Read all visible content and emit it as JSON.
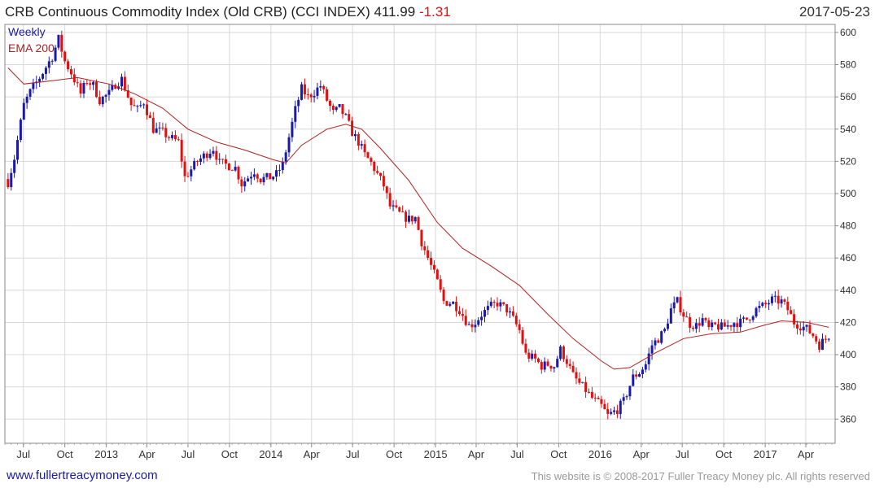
{
  "header": {
    "title": "CRB Continuous Commodity Index (Old CRB) (CCI INDEX) 411.99",
    "change": "-1.31",
    "date": "2017-05-23"
  },
  "legend": {
    "weekly": "Weekly",
    "ema": "EMA 200"
  },
  "footer": {
    "site": "www.fullertreacymoney.com",
    "copyright": "This website is © 2008-2017 Fuller Treacy Money plc. All rights reserved"
  },
  "colors": {
    "up": "#1a1aa8",
    "down": "#e01010",
    "ema": "#b02020",
    "grid": "#d8d8d8",
    "frame": "#888888"
  },
  "chart_data": {
    "type": "line",
    "title": "CRB Continuous Commodity Index (Old CRB) (CCI INDEX)",
    "series_name": "Weekly",
    "ylim": [
      345,
      605
    ],
    "yticks": [
      360,
      380,
      400,
      420,
      440,
      460,
      480,
      500,
      520,
      540,
      560,
      580,
      600
    ],
    "xtick_labels": [
      "Jul",
      "Oct",
      "2013",
      "Apr",
      "Jul",
      "Oct",
      "2014",
      "Apr",
      "Jul",
      "Oct",
      "2015",
      "Apr",
      "Jul",
      "Oct",
      "2016",
      "Apr",
      "Jul",
      "Oct",
      "2017",
      "Apr"
    ],
    "close_path": [
      [
        "2012-05-28",
        507
      ],
      [
        "2012-06-11",
        522
      ],
      [
        "2012-07-02",
        555
      ],
      [
        "2012-07-16",
        563
      ],
      [
        "2012-08-06",
        572
      ],
      [
        "2012-09-03",
        585
      ],
      [
        "2012-09-17",
        596
      ],
      [
        "2012-10-01",
        582
      ],
      [
        "2012-10-15",
        575
      ],
      [
        "2012-11-05",
        562
      ],
      [
        "2012-11-19",
        570
      ],
      [
        "2012-12-03",
        567
      ],
      [
        "2012-12-17",
        558
      ],
      [
        "2013-01-07",
        562
      ],
      [
        "2013-01-21",
        568
      ],
      [
        "2013-02-04",
        571
      ],
      [
        "2013-02-25",
        555
      ],
      [
        "2013-03-11",
        552
      ],
      [
        "2013-03-25",
        557
      ],
      [
        "2013-04-15",
        540
      ],
      [
        "2013-05-06",
        538
      ],
      [
        "2013-05-20",
        535
      ],
      [
        "2013-06-10",
        532
      ],
      [
        "2013-06-24",
        510
      ],
      [
        "2013-07-08",
        515
      ],
      [
        "2013-07-22",
        520
      ],
      [
        "2013-08-12",
        525
      ],
      [
        "2013-08-26",
        528
      ],
      [
        "2013-09-09",
        519
      ],
      [
        "2013-09-23",
        518
      ],
      [
        "2013-10-14",
        516
      ],
      [
        "2013-10-28",
        506
      ],
      [
        "2013-11-11",
        510
      ],
      [
        "2013-11-25",
        514
      ],
      [
        "2013-12-09",
        509
      ],
      [
        "2013-12-30",
        510
      ],
      [
        "2014-01-13",
        512
      ],
      [
        "2014-01-27",
        518
      ],
      [
        "2014-02-10",
        535
      ],
      [
        "2014-02-24",
        552
      ],
      [
        "2014-03-10",
        565
      ],
      [
        "2014-03-24",
        560
      ],
      [
        "2014-04-07",
        563
      ],
      [
        "2014-04-21",
        567
      ],
      [
        "2014-05-05",
        558
      ],
      [
        "2014-05-19",
        550
      ],
      [
        "2014-06-02",
        553
      ],
      [
        "2014-06-16",
        547
      ],
      [
        "2014-06-30",
        538
      ],
      [
        "2014-07-14",
        532
      ],
      [
        "2014-07-28",
        524
      ],
      [
        "2014-08-11",
        519
      ],
      [
        "2014-08-25",
        512
      ],
      [
        "2014-09-08",
        505
      ],
      [
        "2014-09-22",
        492
      ],
      [
        "2014-10-06",
        489
      ],
      [
        "2014-10-20",
        486
      ],
      [
        "2014-11-03",
        484
      ],
      [
        "2014-11-17",
        485
      ],
      [
        "2014-12-01",
        470
      ],
      [
        "2014-12-15",
        460
      ],
      [
        "2015-01-05",
        445
      ],
      [
        "2015-01-19",
        433
      ],
      [
        "2015-02-09",
        432
      ],
      [
        "2015-02-23",
        428
      ],
      [
        "2015-03-16",
        418
      ],
      [
        "2015-03-30",
        420
      ],
      [
        "2015-04-13",
        425
      ],
      [
        "2015-05-04",
        430
      ],
      [
        "2015-05-18",
        432
      ],
      [
        "2015-06-08",
        428
      ],
      [
        "2015-06-22",
        422
      ],
      [
        "2015-07-06",
        415
      ],
      [
        "2015-07-20",
        400
      ],
      [
        "2015-08-10",
        397
      ],
      [
        "2015-08-24",
        393
      ],
      [
        "2015-09-07",
        394
      ],
      [
        "2015-09-21",
        393
      ],
      [
        "2015-10-05",
        403
      ],
      [
        "2015-10-19",
        396
      ],
      [
        "2015-11-02",
        387
      ],
      [
        "2015-11-16",
        382
      ],
      [
        "2015-11-30",
        378
      ],
      [
        "2015-12-14",
        373
      ],
      [
        "2016-01-04",
        368
      ],
      [
        "2016-01-18",
        362
      ],
      [
        "2016-02-08",
        366
      ],
      [
        "2016-02-22",
        371
      ],
      [
        "2016-03-14",
        386
      ],
      [
        "2016-03-28",
        389
      ],
      [
        "2016-04-11",
        394
      ],
      [
        "2016-04-25",
        406
      ],
      [
        "2016-05-09",
        410
      ],
      [
        "2016-05-23",
        415
      ],
      [
        "2016-06-06",
        428
      ],
      [
        "2016-06-20",
        433
      ],
      [
        "2016-07-04",
        425
      ],
      [
        "2016-07-18",
        419
      ],
      [
        "2016-08-01",
        418
      ],
      [
        "2016-08-15",
        422
      ],
      [
        "2016-08-29",
        416
      ],
      [
        "2016-09-12",
        418
      ],
      [
        "2016-09-26",
        417
      ],
      [
        "2016-10-10",
        418
      ],
      [
        "2016-10-24",
        420
      ],
      [
        "2016-11-07",
        420
      ],
      [
        "2016-11-21",
        422
      ],
      [
        "2016-12-12",
        428
      ],
      [
        "2017-01-02",
        431
      ],
      [
        "2017-01-16",
        434
      ],
      [
        "2017-02-06",
        433
      ],
      [
        "2017-02-20",
        428
      ],
      [
        "2017-03-06",
        420
      ],
      [
        "2017-03-20",
        418
      ],
      [
        "2017-04-03",
        416
      ],
      [
        "2017-04-17",
        412
      ],
      [
        "2017-05-01",
        406
      ],
      [
        "2017-05-15",
        410
      ],
      [
        "2017-05-22",
        412
      ]
    ],
    "ema200": [
      [
        "2012-05-28",
        578
      ],
      [
        "2012-07-02",
        568
      ],
      [
        "2012-09-03",
        570
      ],
      [
        "2012-10-29",
        572
      ],
      [
        "2013-01-07",
        568
      ],
      [
        "2013-03-04",
        562
      ],
      [
        "2013-05-06",
        553
      ],
      [
        "2013-07-01",
        540
      ],
      [
        "2013-09-02",
        532
      ],
      [
        "2013-11-04",
        527
      ],
      [
        "2014-01-06",
        521
      ],
      [
        "2014-02-03",
        519
      ],
      [
        "2014-03-10",
        530
      ],
      [
        "2014-05-05",
        540
      ],
      [
        "2014-06-16",
        543
      ],
      [
        "2014-07-21",
        540
      ],
      [
        "2014-09-01",
        528
      ],
      [
        "2014-11-03",
        508
      ],
      [
        "2015-01-05",
        482
      ],
      [
        "2015-03-02",
        466
      ],
      [
        "2015-05-04",
        455
      ],
      [
        "2015-07-06",
        443
      ],
      [
        "2015-09-07",
        425
      ],
      [
        "2015-11-02",
        410
      ],
      [
        "2016-01-04",
        396
      ],
      [
        "2016-02-01",
        391
      ],
      [
        "2016-03-07",
        392
      ],
      [
        "2016-05-02",
        401
      ],
      [
        "2016-07-04",
        410
      ],
      [
        "2016-09-05",
        413
      ],
      [
        "2016-11-07",
        414
      ],
      [
        "2016-12-26",
        418
      ],
      [
        "2017-02-06",
        421
      ],
      [
        "2017-04-03",
        420
      ],
      [
        "2017-05-22",
        417
      ]
    ]
  }
}
